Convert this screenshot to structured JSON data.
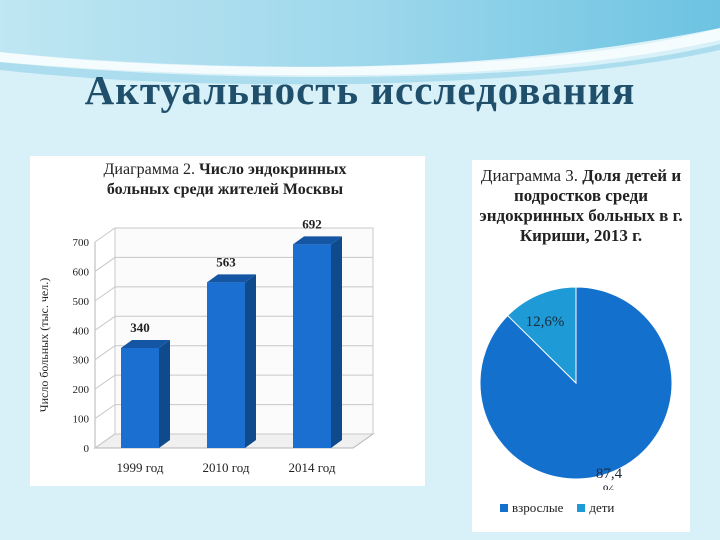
{
  "slide": {
    "title": "Актуальность исследования"
  },
  "colors": {
    "bar_front": "#1a6fd1",
    "bar_top": "#1456a3",
    "bar_side": "#0f4a8c",
    "pie_adults": "#1470cd",
    "pie_children": "#1e9bd6",
    "text": "#222222",
    "title": "#1f4f6b"
  },
  "chart_data": [
    {
      "type": "bar",
      "title_prefix": "Диаграмма 2.",
      "title_bold": "Число эндокринных больных среди жителей Москвы",
      "ylabel": "Число больных (тыс. чел.)",
      "xlabel": "",
      "categories": [
        "1999 год",
        "2010 год",
        "2014 год"
      ],
      "values": [
        340,
        563,
        692
      ],
      "value_labels": [
        "340",
        "563",
        "692"
      ],
      "ylim": [
        0,
        700
      ],
      "y_ticks": [
        "0",
        "100",
        "200",
        "300",
        "400",
        "500",
        "600",
        "700"
      ],
      "grid": true
    },
    {
      "type": "pie",
      "title_prefix": "Диаграмма 3.",
      "title_bold": "Доля детей и подростков среди эндокринных больных в г. Кириши, 2013 г.",
      "slices": [
        {
          "name": "взрослые",
          "value": 87.4,
          "label_line1": "87,4",
          "label_line2": "%"
        },
        {
          "name": "дети",
          "value": 12.6,
          "label_line1": "12,6%",
          "label_line2": ""
        }
      ],
      "legend_position": "bottom"
    }
  ]
}
